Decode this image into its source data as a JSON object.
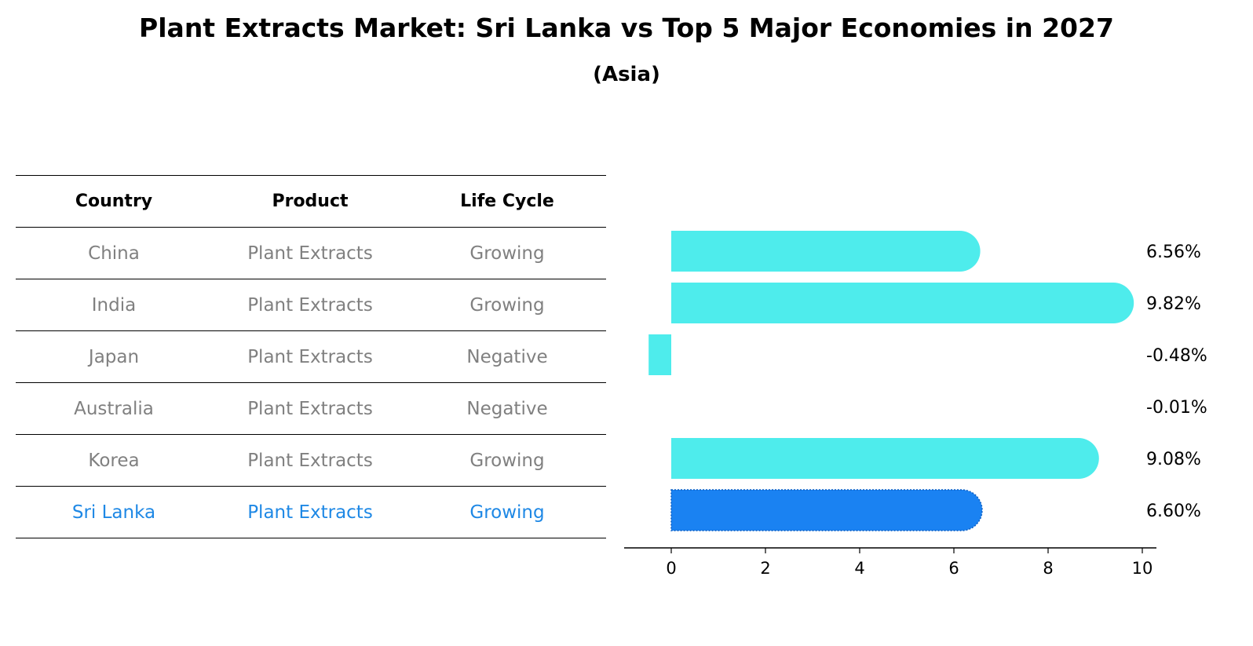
{
  "title": "Plant Extracts Market: Sri Lanka vs Top 5 Major Economies in 2027",
  "subtitle": "(Asia)",
  "table": {
    "headers": [
      "Country",
      "Product",
      "Life Cycle"
    ],
    "rows": [
      {
        "country": "China",
        "product": "Plant Extracts",
        "life_cycle": "Growing"
      },
      {
        "country": "India",
        "product": "Plant Extracts",
        "life_cycle": "Growing"
      },
      {
        "country": "Japan",
        "product": "Plant Extracts",
        "life_cycle": "Negative"
      },
      {
        "country": "Australia",
        "product": "Plant Extracts",
        "life_cycle": "Negative"
      },
      {
        "country": "Korea",
        "product": "Plant Extracts",
        "life_cycle": "Growing"
      },
      {
        "country": "Sri Lanka",
        "product": "Plant Extracts",
        "life_cycle": "Growing"
      }
    ],
    "highlight_row": 5,
    "colors": {
      "text": "#808080",
      "highlight": "#1E88E5",
      "header": "#000000"
    }
  },
  "chart_data": {
    "type": "bar",
    "orientation": "horizontal",
    "categories": [
      "China",
      "India",
      "Japan",
      "Australia",
      "Korea",
      "Sri Lanka"
    ],
    "values": [
      6.56,
      9.82,
      -0.48,
      -0.01,
      9.08,
      6.6
    ],
    "value_labels": [
      "6.56%",
      "9.82%",
      "-0.48%",
      "-0.01%",
      "9.08%",
      "6.60%"
    ],
    "x_ticks": [
      0,
      2,
      4,
      6,
      8,
      10
    ],
    "xlim": [
      -1,
      10.3
    ],
    "highlight_index": 5,
    "colors": {
      "bar": "#4EECEC",
      "highlight": "#1A82F2"
    },
    "grid": false,
    "xlabel": "",
    "ylabel": ""
  }
}
